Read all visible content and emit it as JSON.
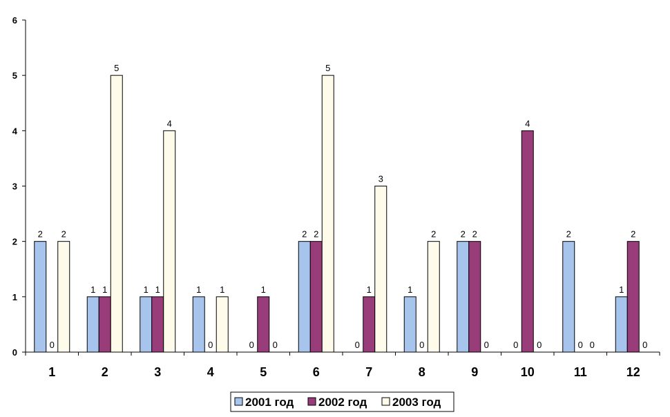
{
  "chart_data": {
    "type": "bar",
    "title": "",
    "xlabel": "",
    "ylabel": "",
    "categories": [
      "1",
      "2",
      "3",
      "4",
      "5",
      "6",
      "7",
      "8",
      "9",
      "10",
      "11",
      "12"
    ],
    "ylim": [
      0,
      6
    ],
    "yticks": [
      0,
      1,
      2,
      3,
      4,
      5,
      6
    ],
    "grid": false,
    "legend_position": "bottom",
    "series": [
      {
        "name": "2001 год",
        "color": "#a6c4ec",
        "values": [
          2,
          1,
          1,
          1,
          0,
          2,
          0,
          1,
          2,
          0,
          2,
          1
        ]
      },
      {
        "name": "2002 год",
        "color": "#993d7a",
        "values": [
          0,
          1,
          1,
          0,
          1,
          2,
          1,
          0,
          2,
          4,
          0,
          2
        ]
      },
      {
        "name": "2003 год",
        "color": "#fffbeb",
        "values": [
          2,
          5,
          4,
          1,
          0,
          5,
          3,
          2,
          0,
          0,
          0,
          0
        ]
      }
    ],
    "data_labels": true
  }
}
